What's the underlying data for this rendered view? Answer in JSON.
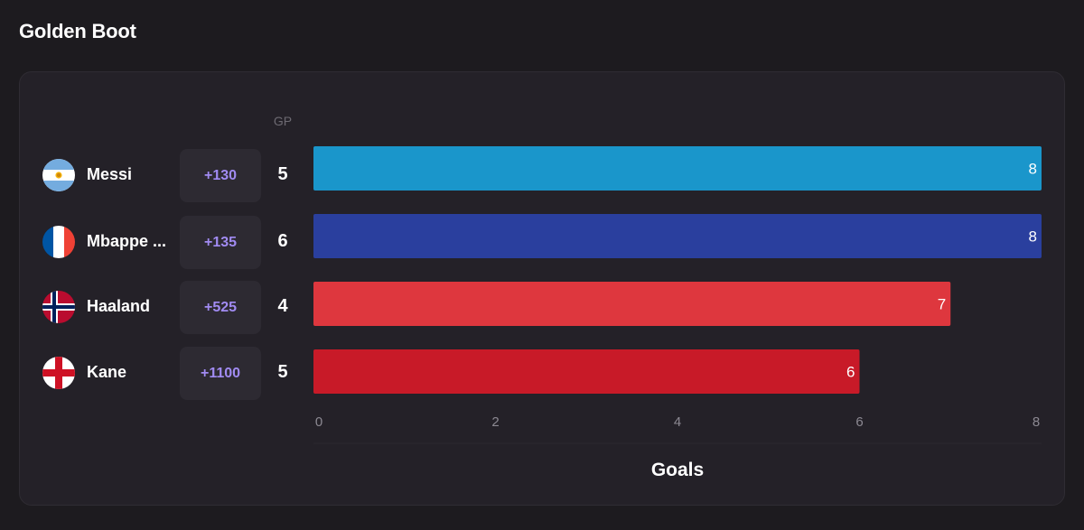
{
  "page": {
    "title": "Golden Boot"
  },
  "table": {
    "gp_header": "GP"
  },
  "players": [
    {
      "name": "Messi",
      "odds": "+130",
      "gp": "5",
      "goals": 8,
      "flag": "argentina-flag-icon",
      "bar_color": "#1a96cb"
    },
    {
      "name": "Mbappe ...",
      "odds": "+135",
      "gp": "6",
      "goals": 8,
      "flag": "france-flag-icon",
      "bar_color": "#2a3f9e"
    },
    {
      "name": "Haaland",
      "odds": "+525",
      "gp": "4",
      "goals": 7,
      "flag": "norway-flag-icon",
      "bar_color": "#de373e"
    },
    {
      "name": "Kane",
      "odds": "+1100",
      "gp": "5",
      "goals": 6,
      "flag": "england-flag-icon",
      "bar_color": "#c81a28"
    }
  ],
  "colors": {
    "background": "#1d1b1f",
    "card": "#242128",
    "odds_text": "#a18bf2",
    "odds_background": "#2d2a32"
  },
  "chart_data": {
    "type": "bar",
    "orientation": "horizontal",
    "categories": [
      "Messi",
      "Mbappe ...",
      "Haaland",
      "Kane"
    ],
    "values": [
      8,
      8,
      7,
      6
    ],
    "xlabel": "Goals",
    "ylabel": "",
    "xlim": [
      0,
      8
    ],
    "x_ticks": [
      "0",
      "2",
      "4",
      "6",
      "8"
    ],
    "data_labels": [
      "8",
      "8",
      "7",
      "6"
    ],
    "grid": false
  }
}
